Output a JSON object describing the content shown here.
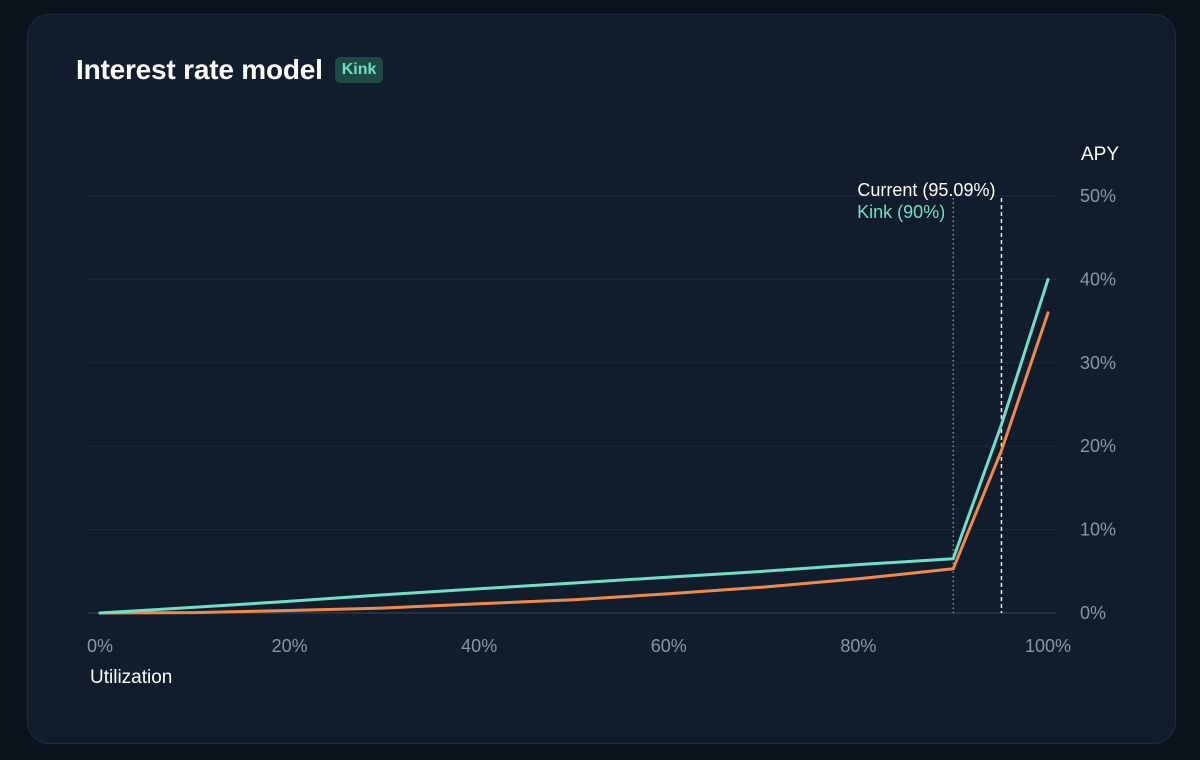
{
  "header": {
    "title": "Interest rate model",
    "badge": "Kink"
  },
  "colors": {
    "background": "#111c2c",
    "supply_line": "#6fe0c6",
    "borrow_line": "#f08a4b",
    "badge_bg": "#1d4a45",
    "badge_text": "#6fe0c6"
  },
  "chart_data": {
    "type": "line",
    "xlabel": "Utilization",
    "ylabel": "APY",
    "xlim": [
      0,
      100
    ],
    "ylim": [
      0,
      50
    ],
    "x_ticks": [
      "0%",
      "20%",
      "40%",
      "60%",
      "80%",
      "100%"
    ],
    "y_ticks": [
      "0%",
      "10%",
      "20%",
      "30%",
      "40%",
      "50%"
    ],
    "grid": true,
    "series": [
      {
        "color": "#6fe0c6",
        "x": [
          0,
          10,
          20,
          30,
          40,
          50,
          60,
          70,
          80,
          90,
          95.09,
          100
        ],
        "y": [
          0,
          0.7,
          1.4,
          2.2,
          2.9,
          3.6,
          4.3,
          5.0,
          5.8,
          6.5,
          22.6,
          40.0
        ]
      },
      {
        "color": "#f08a4b",
        "x": [
          0,
          10,
          20,
          30,
          40,
          50,
          60,
          70,
          80,
          90,
          95.09,
          100
        ],
        "y": [
          0,
          0.05,
          0.3,
          0.6,
          1.1,
          1.6,
          2.3,
          3.1,
          4.1,
          5.3,
          19.5,
          36.0
        ]
      }
    ],
    "annotations": [
      {
        "label": "Current (95.09%)",
        "x": 95.09,
        "style": "dashed"
      },
      {
        "label": "Kink (90%)",
        "x": 90,
        "style": "dotted"
      }
    ]
  }
}
